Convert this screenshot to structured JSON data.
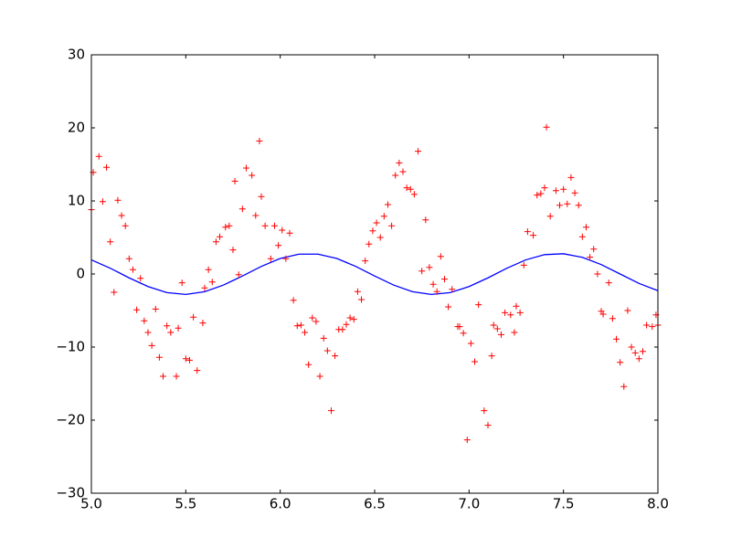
{
  "chart_data": {
    "type": "scatter",
    "xlim": [
      5,
      8
    ],
    "ylim": [
      -30,
      30
    ],
    "xticks": [
      {
        "value": 5,
        "label": "5.0"
      },
      5.5,
      {
        "value": 6,
        "label": "6.0"
      },
      6.5,
      {
        "value": 7,
        "label": "7.0"
      },
      7.5,
      {
        "value": 8,
        "label": "8.0"
      }
    ],
    "yticks": [
      {
        "value": -30,
        "label": "−30"
      },
      {
        "value": -20,
        "label": "−20"
      },
      {
        "value": -10,
        "label": "−10"
      },
      0,
      10,
      20,
      30
    ],
    "grid": false,
    "series": [
      {
        "type": "line",
        "color": "#0000ff",
        "x": [
          5,
          5.1,
          5.2,
          5.3,
          5.4,
          5.5,
          5.6,
          5.7,
          5.8,
          5.9,
          6,
          6.1,
          6.2,
          6.3,
          6.4,
          6.5,
          6.6,
          6.7,
          6.8,
          6.9,
          7,
          7.1,
          7.2,
          7.3,
          7.4,
          7.5,
          7.6,
          7.7,
          7.8,
          7.9,
          8
        ],
        "values": [
          1.93,
          0.79,
          -0.53,
          -1.72,
          -2.55,
          -2.8,
          -2.42,
          -1.51,
          -0.27,
          1.04,
          2.12,
          2.72,
          2.72,
          2.12,
          1.04,
          -0.27,
          -1.51,
          -2.42,
          -2.8,
          -2.55,
          -1.72,
          -0.53,
          0.79,
          1.93,
          2.65,
          2.77,
          2.28,
          1.29,
          0,
          -1.29,
          -2.28
        ]
      },
      {
        "type": "markers",
        "color": "#ff0000",
        "x": [
          5.0,
          5.01,
          5.04,
          5.06,
          5.08,
          5.1,
          5.12,
          5.14,
          5.16,
          5.18,
          5.2,
          5.22,
          5.24,
          5.26,
          5.28,
          5.3,
          5.32,
          5.34,
          5.36,
          5.38,
          5.4,
          5.42,
          5.45,
          5.46,
          5.48,
          5.5,
          5.52,
          5.54,
          5.56,
          5.59,
          5.6,
          5.62,
          5.64,
          5.66,
          5.68,
          5.71,
          5.73,
          5.75,
          5.76,
          5.78,
          5.8,
          5.82,
          5.85,
          5.87,
          5.89,
          5.9,
          5.92,
          5.95,
          5.97,
          5.99,
          6.01,
          6.03,
          6.05,
          6.07,
          6.09,
          6.11,
          6.13,
          6.15,
          6.17,
          6.19,
          6.21,
          6.23,
          6.25,
          6.27,
          6.29,
          6.31,
          6.33,
          6.35,
          6.37,
          6.39,
          6.41,
          6.43,
          6.45,
          6.47,
          6.49,
          6.51,
          6.53,
          6.55,
          6.57,
          6.59,
          6.61,
          6.63,
          6.65,
          6.67,
          6.69,
          6.71,
          6.73,
          6.75,
          6.77,
          6.79,
          6.81,
          6.83,
          6.85,
          6.87,
          6.89,
          6.91,
          6.94,
          6.95,
          6.97,
          6.99,
          7.01,
          7.03,
          7.05,
          7.08,
          7.1,
          7.12,
          7.13,
          7.15,
          7.17,
          7.19,
          7.22,
          7.24,
          7.25,
          7.27,
          7.29,
          7.31,
          7.34,
          7.36,
          7.38,
          7.4,
          7.41,
          7.43,
          7.46,
          7.48,
          7.5,
          7.52,
          7.54,
          7.56,
          7.58,
          7.6,
          7.62,
          7.64,
          7.66,
          7.68,
          7.7,
          7.71,
          7.74,
          7.76,
          7.78,
          7.8,
          7.82,
          7.84,
          7.86,
          7.88,
          7.9,
          7.92,
          7.94,
          7.97,
          7.99,
          8.0
        ],
        "values": [
          8.8,
          13.9,
          16.1,
          9.9,
          14.6,
          4.4,
          -2.5,
          10.1,
          8.0,
          6.6,
          2.1,
          0.6,
          -4.9,
          -0.6,
          -6.4,
          -8.0,
          -9.8,
          -4.8,
          -11.4,
          -14.0,
          -7.1,
          -8.0,
          -14.0,
          -7.4,
          -1.2,
          -11.6,
          -11.8,
          -5.9,
          -13.2,
          -6.7,
          -1.9,
          0.6,
          -1.1,
          4.4,
          5.1,
          6.4,
          6.6,
          3.3,
          12.7,
          -0.1,
          8.9,
          14.5,
          13.5,
          8.0,
          18.2,
          10.6,
          6.6,
          2.1,
          6.6,
          3.9,
          6.0,
          2.1,
          5.6,
          -3.6,
          -7.1,
          -7.0,
          -8.0,
          -12.4,
          -6.0,
          -6.5,
          -14.0,
          -8.8,
          -10.5,
          -18.7,
          -11.2,
          -7.6,
          -7.6,
          -6.9,
          -6.0,
          -6.2,
          -2.4,
          -3.5,
          1.8,
          4.1,
          5.9,
          7.0,
          5.0,
          7.9,
          9.5,
          6.6,
          13.5,
          15.2,
          14.0,
          11.8,
          11.6,
          10.9,
          16.8,
          0.4,
          7.4,
          0.9,
          -1.4,
          -2.4,
          2.4,
          -0.7,
          -4.5,
          -2.1,
          -7.2,
          -7.2,
          -8.1,
          -22.7,
          -9.5,
          -12.0,
          -4.2,
          -18.7,
          -20.7,
          -11.2,
          -7.0,
          -7.5,
          -8.3,
          -5.3,
          -5.6,
          -8.0,
          -4.4,
          -5.3,
          1.2,
          5.8,
          5.3,
          10.8,
          11.0,
          11.8,
          20.1,
          7.9,
          11.4,
          9.4,
          11.6,
          9.6,
          13.2,
          11.1,
          9.4,
          5.1,
          6.4,
          2.3,
          3.4,
          0.0,
          -5.1,
          -5.5,
          -1.2,
          -6.1,
          -8.9,
          -12.1,
          -15.4,
          -5.0,
          -10.0,
          -10.8,
          -11.6,
          -10.6,
          -7.0,
          -7.2,
          -5.6,
          -7.0
        ]
      }
    ]
  }
}
